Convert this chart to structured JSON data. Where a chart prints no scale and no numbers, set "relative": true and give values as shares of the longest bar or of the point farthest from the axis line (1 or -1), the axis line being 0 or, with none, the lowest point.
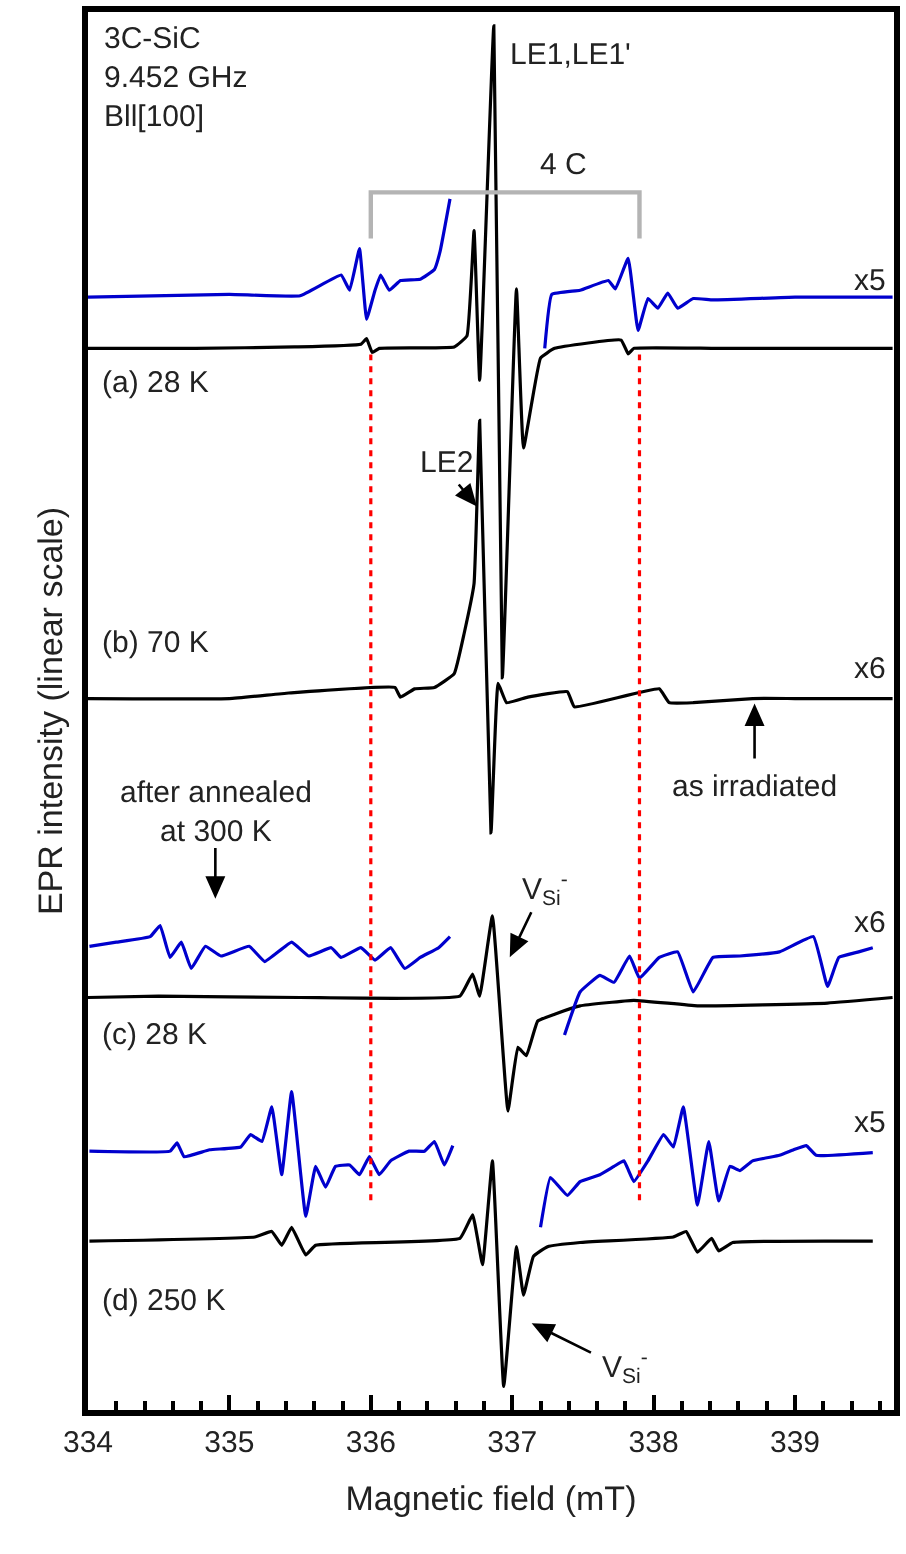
{
  "chart_data": {
    "type": "line",
    "relative": true,
    "xlabel": "Magnetic field (mT)",
    "ylabel": "EPR intensity (linear scale)",
    "xlim": [
      334,
      339.7
    ],
    "xticks": [
      334,
      335,
      336,
      337,
      338,
      339
    ],
    "marker": "none",
    "line_style": "solid",
    "series": [
      {
        "color": "#000000",
        "x": [
          334,
          334.76,
          335.46,
          335.93,
          335.97,
          336.01,
          336.06,
          336.59,
          336.68,
          336.73,
          336.77,
          336.87,
          336.93,
          337.03,
          337.08,
          337.2,
          337.3,
          337.77,
          337.82,
          337.86,
          338.42,
          338.99,
          339.69
        ],
        "values": [
          0.767,
          0.767,
          0.768,
          0.77,
          0.774,
          0.764,
          0.767,
          0.768,
          0.776,
          0.852,
          0.744,
          1,
          0.529,
          0.81,
          0.695,
          0.76,
          0.767,
          0.773,
          0.763,
          0.767,
          0.767,
          0.767,
          0.767
        ]
      },
      {
        "color": "#0000cd",
        "x": [
          334,
          335,
          335.5,
          335.79,
          335.85,
          335.92,
          335.97,
          336.03,
          336.07,
          336.13,
          336.21,
          336.35,
          336.45,
          336.49,
          336.56,
          336.9,
          337.23,
          337.28,
          337.48,
          337.68,
          337.73,
          337.82,
          337.89,
          337.96,
          338.03,
          338.1,
          338.17,
          338.28,
          338.42,
          339,
          339.69
        ],
        "values": [
          0.804,
          0.806,
          0.805,
          0.82,
          0.809,
          0.839,
          0.788,
          0.809,
          0.82,
          0.809,
          0.816,
          0.817,
          0.824,
          0.837,
          0.875,
          null,
          0.767,
          0.806,
          0.809,
          0.816,
          0.81,
          0.832,
          0.78,
          0.803,
          0.796,
          0.807,
          0.796,
          0.803,
          0.802,
          0.804,
          0.804
        ]
      },
      {
        "color": "#000000",
        "x": [
          334,
          335,
          335.42,
          336.17,
          336.21,
          336.31,
          336.45,
          336.59,
          336.66,
          336.73,
          336.77,
          336.85,
          336.9,
          336.96,
          337.11,
          337.39,
          337.44,
          338.04,
          338.11,
          338.28,
          338.7,
          339,
          339.69
        ],
        "values": [
          0.514,
          0.514,
          0.518,
          0.522,
          0.515,
          0.521,
          0.522,
          0.532,
          0.561,
          0.597,
          0.715,
          0.417,
          0.525,
          0.511,
          0.515,
          0.519,
          0.508,
          0.521,
          0.511,
          0.511,
          0.514,
          0.514,
          0.514
        ]
      },
      {
        "color": "#000000",
        "x": [
          334,
          334.5,
          335.5,
          336.63,
          336.72,
          336.77,
          336.86,
          336.97,
          337.04,
          337.1,
          337.18,
          337.3,
          337.48,
          337.86,
          338.31,
          339.23,
          339.69
        ],
        "values": [
          0.298,
          0.299,
          0.298,
          0.299,
          0.315,
          0.299,
          0.357,
          0.216,
          0.262,
          0.256,
          0.281,
          0.286,
          0.292,
          0.296,
          0.292,
          0.294,
          0.298
        ]
      },
      {
        "color": "#0000cd",
        "x": [
          334.01,
          334.2,
          334.44,
          334.51,
          334.58,
          334.66,
          334.73,
          334.83,
          334.94,
          335.14,
          335.25,
          335.44,
          335.56,
          335.72,
          335.79,
          335.93,
          336.03,
          336.14,
          336.24,
          336.35,
          336.48,
          336.56,
          337,
          337.37,
          337.48,
          337.62,
          337.72,
          337.83,
          337.9,
          338.04,
          338.17,
          338.28,
          338.42,
          338.61,
          338.89,
          339.13,
          339.23,
          339.31,
          339.45,
          339.55
        ],
        "values": [
          0.335,
          0.338,
          0.342,
          0.35,
          0.327,
          0.338,
          0.319,
          0.335,
          0.328,
          0.335,
          0.324,
          0.338,
          0.328,
          0.334,
          0.327,
          0.334,
          0.325,
          0.334,
          0.319,
          0.327,
          0.334,
          0.342,
          null,
          0.271,
          0.302,
          0.314,
          0.309,
          0.328,
          0.312,
          0.327,
          0.331,
          0.302,
          0.327,
          0.328,
          0.331,
          0.342,
          0.306,
          0.327,
          0.331,
          0.334
        ]
      },
      {
        "color": "#000000",
        "x": [
          334.01,
          335.18,
          335.3,
          335.37,
          335.44,
          335.54,
          335.61,
          336.63,
          336.72,
          336.79,
          336.86,
          336.94,
          337.03,
          337.08,
          337.15,
          337.25,
          337.48,
          338.14,
          338.23,
          338.31,
          338.41,
          338.46,
          338.56,
          339.55
        ],
        "values": [
          0.122,
          0.125,
          0.129,
          0.119,
          0.132,
          0.112,
          0.119,
          0.124,
          0.141,
          0.105,
          0.18,
          0.017,
          0.118,
          0.083,
          0.111,
          0.118,
          0.121,
          0.125,
          0.129,
          0.114,
          0.124,
          0.115,
          0.121,
          0.122
        ]
      },
      {
        "color": "#0000cd",
        "x": [
          334.01,
          334.58,
          334.63,
          334.68,
          334.86,
          335.08,
          335.15,
          335.23,
          335.3,
          335.37,
          335.44,
          335.54,
          335.61,
          335.68,
          335.75,
          335.85,
          335.92,
          335.99,
          336.06,
          336.14,
          336.27,
          336.38,
          336.45,
          336.52,
          336.58,
          337,
          337.2,
          337.27,
          337.39,
          337.48,
          337.62,
          337.72,
          337.79,
          337.86,
          337.96,
          338.07,
          338.14,
          338.21,
          338.31,
          338.39,
          338.46,
          338.54,
          338.61,
          338.7,
          338.89,
          338.99,
          339.08,
          339.15,
          339.55
        ],
        "values": [
          0.187,
          0.187,
          0.193,
          0.183,
          0.188,
          0.19,
          0.199,
          0.194,
          0.219,
          0.17,
          0.23,
          0.14,
          0.176,
          0.161,
          0.176,
          0.177,
          0.17,
          0.183,
          0.17,
          0.18,
          0.187,
          0.187,
          0.194,
          0.177,
          0.191,
          null,
          0.132,
          0.168,
          0.155,
          0.165,
          0.17,
          0.176,
          0.18,
          0.165,
          0.18,
          0.199,
          0.19,
          0.219,
          0.148,
          0.194,
          0.151,
          0.176,
          0.173,
          0.18,
          0.184,
          0.188,
          0.191,
          0.184,
          0.186
        ]
      }
    ],
    "ref_lines": [
      {
        "axis": "x",
        "value": 336.0,
        "color": "#ff0000",
        "line_style": "dotted"
      },
      {
        "axis": "x",
        "value": 337.9,
        "color": "#ff0000",
        "line_style": "dotted"
      }
    ],
    "annotations": [
      "3C-SiC\n9.452 GHz\nBll[100]",
      "(a) 28 K",
      "(b) 70 K",
      "(c) 28 K",
      "(d) 250 K",
      "x5",
      "x6",
      "x6",
      "x5",
      "4 C",
      {
        "text": "LE1,LE1'",
        "x": 336.87,
        "y": 1.0
      },
      "LE2",
      "after annealed\nat 300 K",
      "as irradiated",
      "V$_{Si}$$^{-}$",
      "V$_{Si}$$^{-}$"
    ]
  }
}
